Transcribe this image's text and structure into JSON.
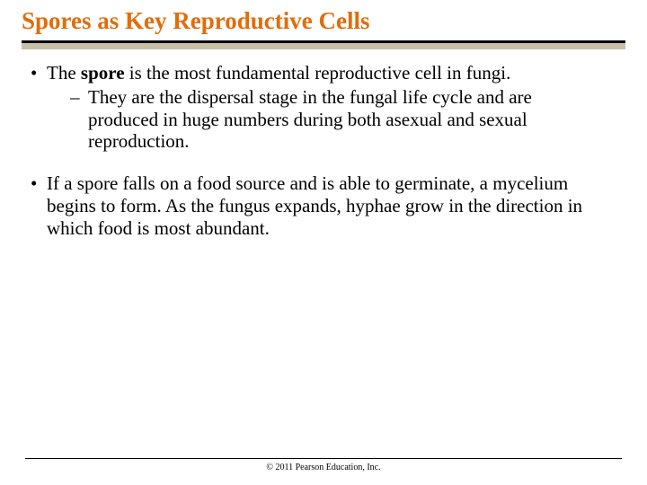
{
  "title": "Spores as Key Reproductive Cells",
  "title_color": "#e36c0a",
  "rule_top_color": "#000000",
  "rule_fill_color": "#c8bfa8",
  "background_color": "#ffffff",
  "text_color": "#000000",
  "title_fontsize": 27,
  "body_fontsize": 21,
  "bullets": [
    {
      "marker": "•",
      "prefix": "The ",
      "bold_word": "spore",
      "rest": " is the most fundamental reproductive cell in fungi.",
      "sub": {
        "marker": "–",
        "text": "They are the dispersal stage in the fungal life cycle and are produced in huge numbers during both asexual and sexual reproduction."
      }
    },
    {
      "marker": "•",
      "text": "If a spore falls on a food source and is able to germinate, a mycelium begins to form. As the fungus expands, hyphae grow in the direction in which food is most abundant."
    }
  ],
  "copyright": "© 2011 Pearson Education, Inc."
}
